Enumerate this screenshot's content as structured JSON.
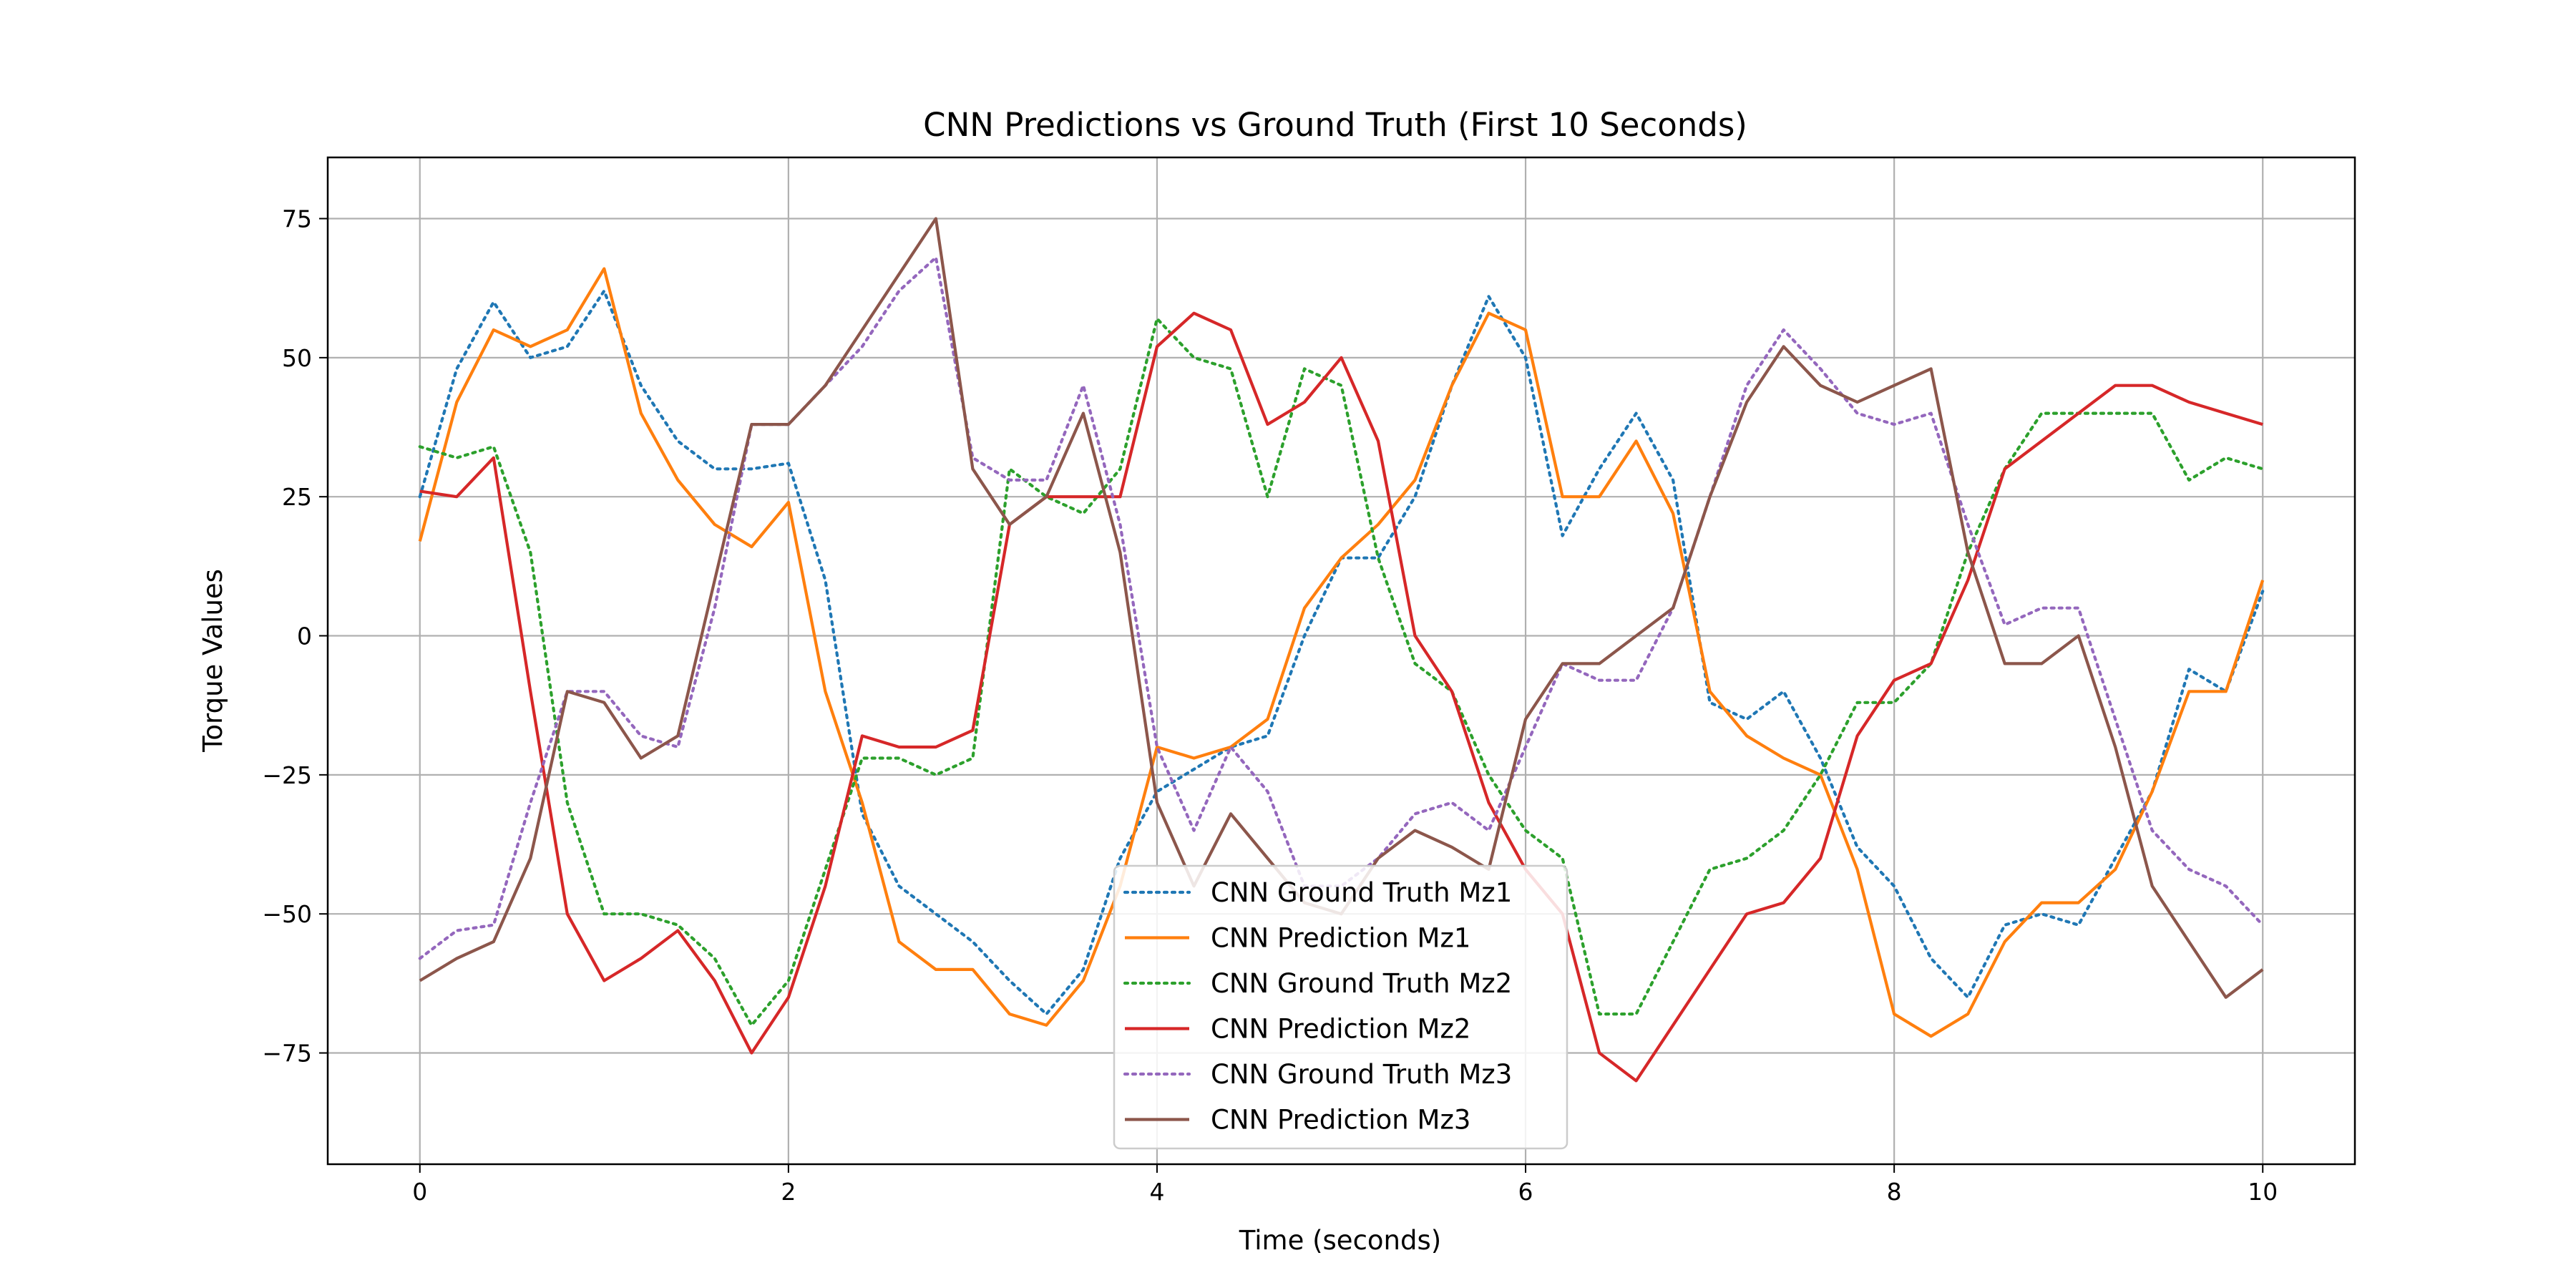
{
  "chart_data": {
    "type": "line",
    "title": "CNN Predictions vs Ground Truth (First 10 Seconds)",
    "xlabel": "Time (seconds)",
    "ylabel": "Torque Values",
    "xlim": [
      -0.5,
      10.5
    ],
    "ylim": [
      -95,
      86
    ],
    "xticks": [
      0,
      2,
      4,
      6,
      8,
      10
    ],
    "xtick_labels": [
      "0",
      "2",
      "4",
      "6",
      "8",
      "10"
    ],
    "yticks": [
      -75,
      -50,
      -25,
      0,
      25,
      50,
      75
    ],
    "ytick_labels": [
      "−75",
      "−50",
      "−25",
      "0",
      "25",
      "50",
      "75"
    ],
    "grid": true,
    "legend_position": "lower center",
    "x": [
      0,
      0.2,
      0.4,
      0.6,
      0.8,
      1.0,
      1.2,
      1.4,
      1.6,
      1.8,
      2.0,
      2.2,
      2.4,
      2.6,
      2.8,
      3.0,
      3.2,
      3.4,
      3.6,
      3.8,
      4.0,
      4.2,
      4.4,
      4.6,
      4.8,
      5.0,
      5.2,
      5.4,
      5.6,
      5.8,
      6.0,
      6.2,
      6.4,
      6.6,
      6.8,
      7.0,
      7.2,
      7.4,
      7.6,
      7.8,
      8.0,
      8.2,
      8.4,
      8.6,
      8.8,
      9.0,
      9.2,
      9.4,
      9.6,
      9.8,
      10.0
    ],
    "series": [
      {
        "name": "CNN Ground Truth Mz1",
        "color": "#1f77b4",
        "style": "dotted",
        "values": [
          25,
          48,
          60,
          50,
          52,
          62,
          45,
          35,
          30,
          30,
          31,
          10,
          -32,
          -45,
          -50,
          -55,
          -62,
          -68,
          -60,
          -40,
          -28,
          -24,
          -20,
          -18,
          0,
          14,
          14,
          25,
          45,
          61,
          50,
          18,
          30,
          40,
          28,
          -12,
          -15,
          -10,
          -22,
          -38,
          -45,
          -58,
          -65,
          -52,
          -50,
          -52,
          -40,
          -28,
          -6,
          -10,
          8
        ]
      },
      {
        "name": "CNN Prediction Mz1",
        "color": "#ff7f0e",
        "style": "solid",
        "values": [
          17,
          42,
          55,
          52,
          55,
          66,
          40,
          28,
          20,
          16,
          24,
          -10,
          -30,
          -55,
          -60,
          -60,
          -68,
          -70,
          -62,
          -45,
          -20,
          -22,
          -20,
          -15,
          5,
          14,
          20,
          28,
          45,
          58,
          55,
          25,
          25,
          35,
          22,
          -10,
          -18,
          -22,
          -25,
          -42,
          -68,
          -72,
          -68,
          -55,
          -48,
          -48,
          -42,
          -28,
          -10,
          -10,
          10
        ]
      },
      {
        "name": "CNN Ground Truth Mz2",
        "color": "#2ca02c",
        "style": "dotted",
        "values": [
          34,
          32,
          34,
          15,
          -30,
          -50,
          -50,
          -52,
          -58,
          -70,
          -62,
          -42,
          -22,
          -22,
          -25,
          -22,
          30,
          25,
          22,
          30,
          57,
          50,
          48,
          25,
          48,
          45,
          14,
          -5,
          -10,
          -25,
          -35,
          -40,
          -68,
          -68,
          -55,
          -42,
          -40,
          -35,
          -25,
          -12,
          -12,
          -5,
          15,
          30,
          40,
          40,
          40,
          40,
          28,
          32,
          30
        ]
      },
      {
        "name": "CNN Prediction Mz2",
        "color": "#d62728",
        "style": "solid",
        "values": [
          26,
          25,
          32,
          -10,
          -50,
          -62,
          -58,
          -53,
          -62,
          -75,
          -65,
          -45,
          -18,
          -20,
          -20,
          -17,
          20,
          25,
          25,
          25,
          52,
          58,
          55,
          38,
          42,
          50,
          35,
          0,
          -10,
          -30,
          -42,
          -50,
          -75,
          -80,
          -70,
          -60,
          -50,
          -48,
          -40,
          -18,
          -8,
          -5,
          10,
          30,
          35,
          40,
          45,
          45,
          42,
          40,
          38
        ]
      },
      {
        "name": "CNN Ground Truth Mz3",
        "color": "#9467bd",
        "style": "dotted",
        "values": [
          -58,
          -53,
          -52,
          -30,
          -10,
          -10,
          -18,
          -20,
          5,
          38,
          38,
          45,
          52,
          62,
          68,
          32,
          28,
          28,
          45,
          20,
          -20,
          -35,
          -20,
          -28,
          -45,
          -45,
          -40,
          -32,
          -30,
          -35,
          -20,
          -5,
          -8,
          -8,
          5,
          25,
          45,
          55,
          48,
          40,
          38,
          40,
          20,
          2,
          5,
          5,
          -15,
          -35,
          -42,
          -45,
          -52
        ]
      },
      {
        "name": "CNN Prediction Mz3",
        "color": "#8c564b",
        "style": "solid",
        "values": [
          -62,
          -58,
          -55,
          -40,
          -10,
          -12,
          -22,
          -18,
          10,
          38,
          38,
          45,
          55,
          65,
          75,
          30,
          20,
          25,
          40,
          15,
          -30,
          -45,
          -32,
          -40,
          -48,
          -50,
          -40,
          -35,
          -38,
          -42,
          -15,
          -5,
          -5,
          0,
          5,
          25,
          42,
          52,
          45,
          42,
          45,
          48,
          15,
          -5,
          -5,
          0,
          -20,
          -45,
          -55,
          -65,
          -60
        ]
      }
    ]
  }
}
